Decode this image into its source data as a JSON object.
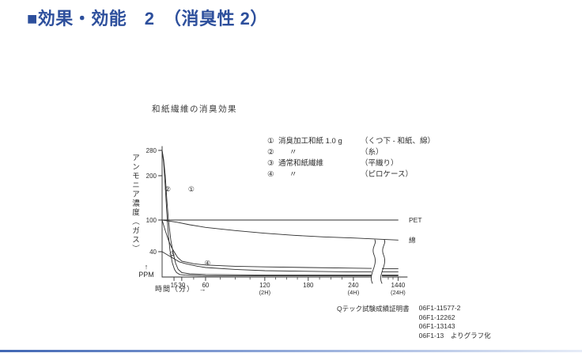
{
  "slide": {
    "title": "■効果・効能　2　（消臭性 2）",
    "accent_color": "#2d4f9c",
    "ink_color": "#2e2e2e"
  },
  "figure": {
    "title": "和紙繊維の消臭効果",
    "legend": {
      "items": [
        {
          "marker": "①",
          "name": "消臭加工和紙 1.0 g",
          "detail": "（くつ下 - 和紙、綿）"
        },
        {
          "marker": "②",
          "name": "〃",
          "detail": "（糸）"
        },
        {
          "marker": "③",
          "name": "通常和紙繊維",
          "detail": "（平織り）"
        },
        {
          "marker": "④",
          "name": "〃",
          "detail": "（ピロケース）"
        }
      ]
    },
    "source": {
      "label": "Qテック試験成績証明書",
      "refs": [
        "06F1-11577-2",
        "06F1-12262",
        "06F1-13143",
        "06F1-13　よりグラフ化"
      ]
    }
  },
  "chart_data": {
    "type": "line",
    "title": "和紙繊維の消臭効果",
    "ylabel": "アンモニア濃度（ガス）",
    "y_arrow": "↑",
    "y_unit": "PPM",
    "xlabel": "時間（分）　→",
    "ylim": [
      0,
      290
    ],
    "y_ticks": [
      280,
      200,
      100,
      40
    ],
    "x_ticks": [
      {
        "v": 15,
        "label": "15"
      },
      {
        "v": 30,
        "label": "30"
      },
      {
        "v": 60,
        "label": "60"
      },
      {
        "v": 120,
        "label": "120",
        "sub": "(2H)"
      },
      {
        "v": 180,
        "label": "180"
      },
      {
        "v": 240,
        "label": "240",
        "sub": "(4H)"
      },
      {
        "v": 1440,
        "label": "1440",
        "sub": "(24H)"
      }
    ],
    "axis_break_after": 240,
    "series": [
      {
        "id": "s2",
        "name": "② 消臭加工和紙1.0g（糸）",
        "points": [
          [
            0,
            280
          ],
          [
            2,
            240
          ],
          [
            4,
            175
          ],
          [
            6,
            115
          ],
          [
            8,
            70
          ],
          [
            10,
            42
          ],
          [
            13,
            22
          ],
          [
            16,
            12
          ],
          [
            20,
            7
          ],
          [
            26,
            4
          ],
          [
            34,
            3
          ],
          [
            60,
            2
          ],
          [
            120,
            2
          ],
          [
            240,
            2
          ],
          [
            1440,
            2
          ]
        ]
      },
      {
        "id": "s1",
        "name": "① 消臭加工和紙1.0g（くつ下-和紙、綿）",
        "points": [
          [
            0,
            280
          ],
          [
            2,
            250
          ],
          [
            4,
            200
          ],
          [
            6,
            145
          ],
          [
            8,
            100
          ],
          [
            11,
            62
          ],
          [
            14,
            38
          ],
          [
            18,
            22
          ],
          [
            23,
            12
          ],
          [
            30,
            7
          ],
          [
            40,
            5
          ],
          [
            60,
            4
          ],
          [
            120,
            3
          ],
          [
            240,
            3
          ],
          [
            1440,
            3
          ]
        ]
      },
      {
        "id": "s4",
        "name": "④ 通常和紙繊維（ピロケース）",
        "points": [
          [
            0,
            100
          ],
          [
            4,
            80
          ],
          [
            8,
            62
          ],
          [
            12,
            48
          ],
          [
            16,
            39
          ],
          [
            22,
            31
          ],
          [
            30,
            25
          ],
          [
            45,
            21
          ],
          [
            60,
            19
          ],
          [
            90,
            17
          ],
          [
            120,
            16
          ],
          [
            180,
            15
          ],
          [
            240,
            14
          ],
          [
            1440,
            13
          ]
        ]
      },
      {
        "id": "s3",
        "name": "③ 通常和紙繊維（平織り）",
        "points": [
          [
            0,
            40
          ],
          [
            8,
            34
          ],
          [
            15,
            29
          ],
          [
            25,
            24
          ],
          [
            35,
            21
          ],
          [
            50,
            17
          ],
          [
            60,
            15
          ],
          [
            90,
            12
          ],
          [
            120,
            10
          ],
          [
            180,
            9
          ],
          [
            240,
            8
          ],
          [
            1440,
            8
          ]
        ]
      },
      {
        "id": "cotton",
        "name": "綿",
        "end_label": "綿",
        "points": [
          [
            0,
            100
          ],
          [
            20,
            96
          ],
          [
            40,
            91
          ],
          [
            60,
            86
          ],
          [
            90,
            80
          ],
          [
            120,
            75
          ],
          [
            160,
            71
          ],
          [
            200,
            68
          ],
          [
            240,
            66
          ],
          [
            1440,
            62
          ]
        ]
      },
      {
        "id": "pet",
        "name": "PET",
        "end_label": "PET",
        "points": [
          [
            0,
            100
          ],
          [
            240,
            100
          ],
          [
            1440,
            100
          ]
        ]
      }
    ],
    "annotations": [
      {
        "text": "②",
        "x": 7,
        "y": 170
      },
      {
        "text": "①",
        "x": 42,
        "y": 170
      },
      {
        "text": "③",
        "x": 13,
        "y": 36
      },
      {
        "text": "④",
        "x": 62,
        "y": 22
      }
    ]
  }
}
